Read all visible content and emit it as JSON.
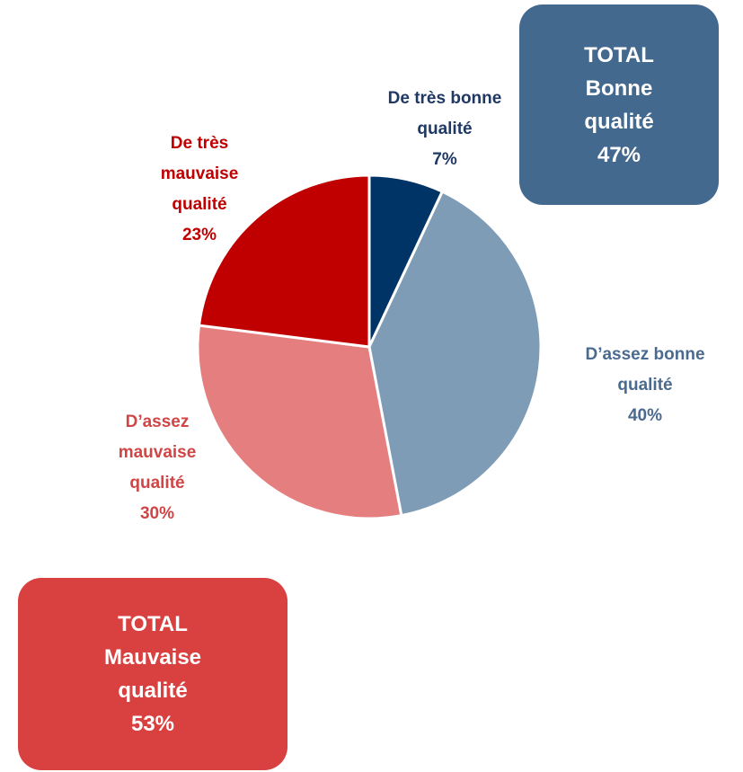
{
  "chart_data": {
    "type": "pie",
    "categories": [
      "De très bonne qualité",
      "D’assez bonne qualité",
      "D’assez mauvaise qualité",
      "De très mauvaise qualité"
    ],
    "values": [
      7,
      40,
      30,
      23
    ],
    "value_labels": [
      "7%",
      "40%",
      "30%",
      "23%"
    ],
    "colors": [
      "#003366",
      "#7f9cb7",
      "#e57f7f",
      "#c00000"
    ],
    "label_colors": [
      "#1f3864",
      "#4a6a8f",
      "#d04545",
      "#c00000"
    ],
    "annotations": [
      {
        "title": "TOTAL",
        "text": "Bonne qualité",
        "value": 47,
        "label": "47%",
        "color": "#44698f"
      },
      {
        "title": "TOTAL",
        "text": "Mauvaise qualité",
        "value": 53,
        "label": "53%",
        "color": "#d94040"
      }
    ]
  }
}
